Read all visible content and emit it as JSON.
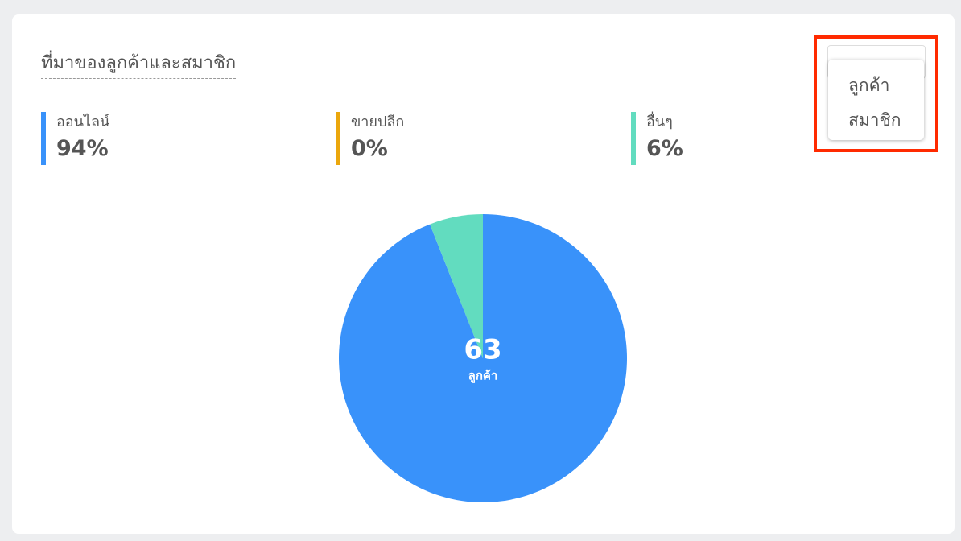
{
  "card": {
    "title": "ที่มาของลูกค้าและสมาชิก"
  },
  "dropdown": {
    "options": [
      "ลูกค้า",
      "สมาชิก"
    ]
  },
  "chart_data": {
    "type": "pie",
    "categories": [
      "ออนไลน์",
      "ขายปลีก",
      "อื่นๆ"
    ],
    "values": [
      94,
      0,
      6
    ],
    "value_labels": [
      "94%",
      "0%",
      "6%"
    ],
    "colors": [
      "#3992fa",
      "#eba70d",
      "#62dcbf"
    ],
    "center_value": 63,
    "center_label": "ลูกค้า"
  }
}
